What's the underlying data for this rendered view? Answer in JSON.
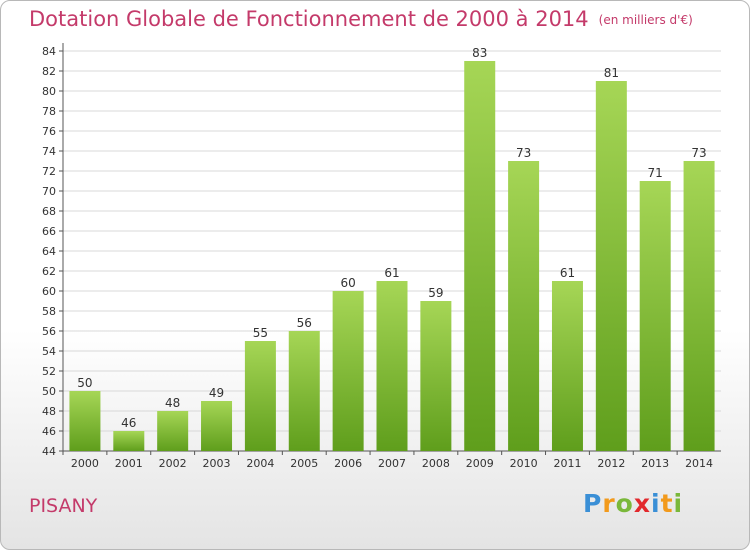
{
  "title": "Dotation Globale de Fonctionnement de 2000 à 2014",
  "unit": "(en milliers d'€)",
  "commune": "PISANY",
  "logo": {
    "letters": [
      "P",
      "r",
      "o",
      "x",
      "i",
      "t",
      "i"
    ],
    "colors": [
      "#3a8fd6",
      "#f29a1c",
      "#7ab83a",
      "#e2282c",
      "#3a8fd6",
      "#f29a1c",
      "#7ab83a"
    ]
  },
  "colors": {
    "title": "#c43a6a",
    "bar_top": "#a6d656",
    "bar_bottom": "#5f9e1c",
    "grid": "#d8d8d8"
  },
  "chart_data": {
    "type": "bar",
    "categories": [
      "2000",
      "2001",
      "2002",
      "2003",
      "2004",
      "2005",
      "2006",
      "2007",
      "2008",
      "2009",
      "2010",
      "2011",
      "2012",
      "2013",
      "2014"
    ],
    "values": [
      50,
      46,
      48,
      49,
      55,
      56,
      60,
      61,
      59,
      83,
      73,
      61,
      81,
      71,
      73
    ],
    "ylim": [
      44,
      84
    ],
    "yticks": [
      44,
      46,
      48,
      50,
      52,
      54,
      56,
      58,
      60,
      62,
      64,
      66,
      68,
      70,
      72,
      74,
      76,
      78,
      80,
      82,
      84
    ],
    "grid": true,
    "data_labels": true
  }
}
